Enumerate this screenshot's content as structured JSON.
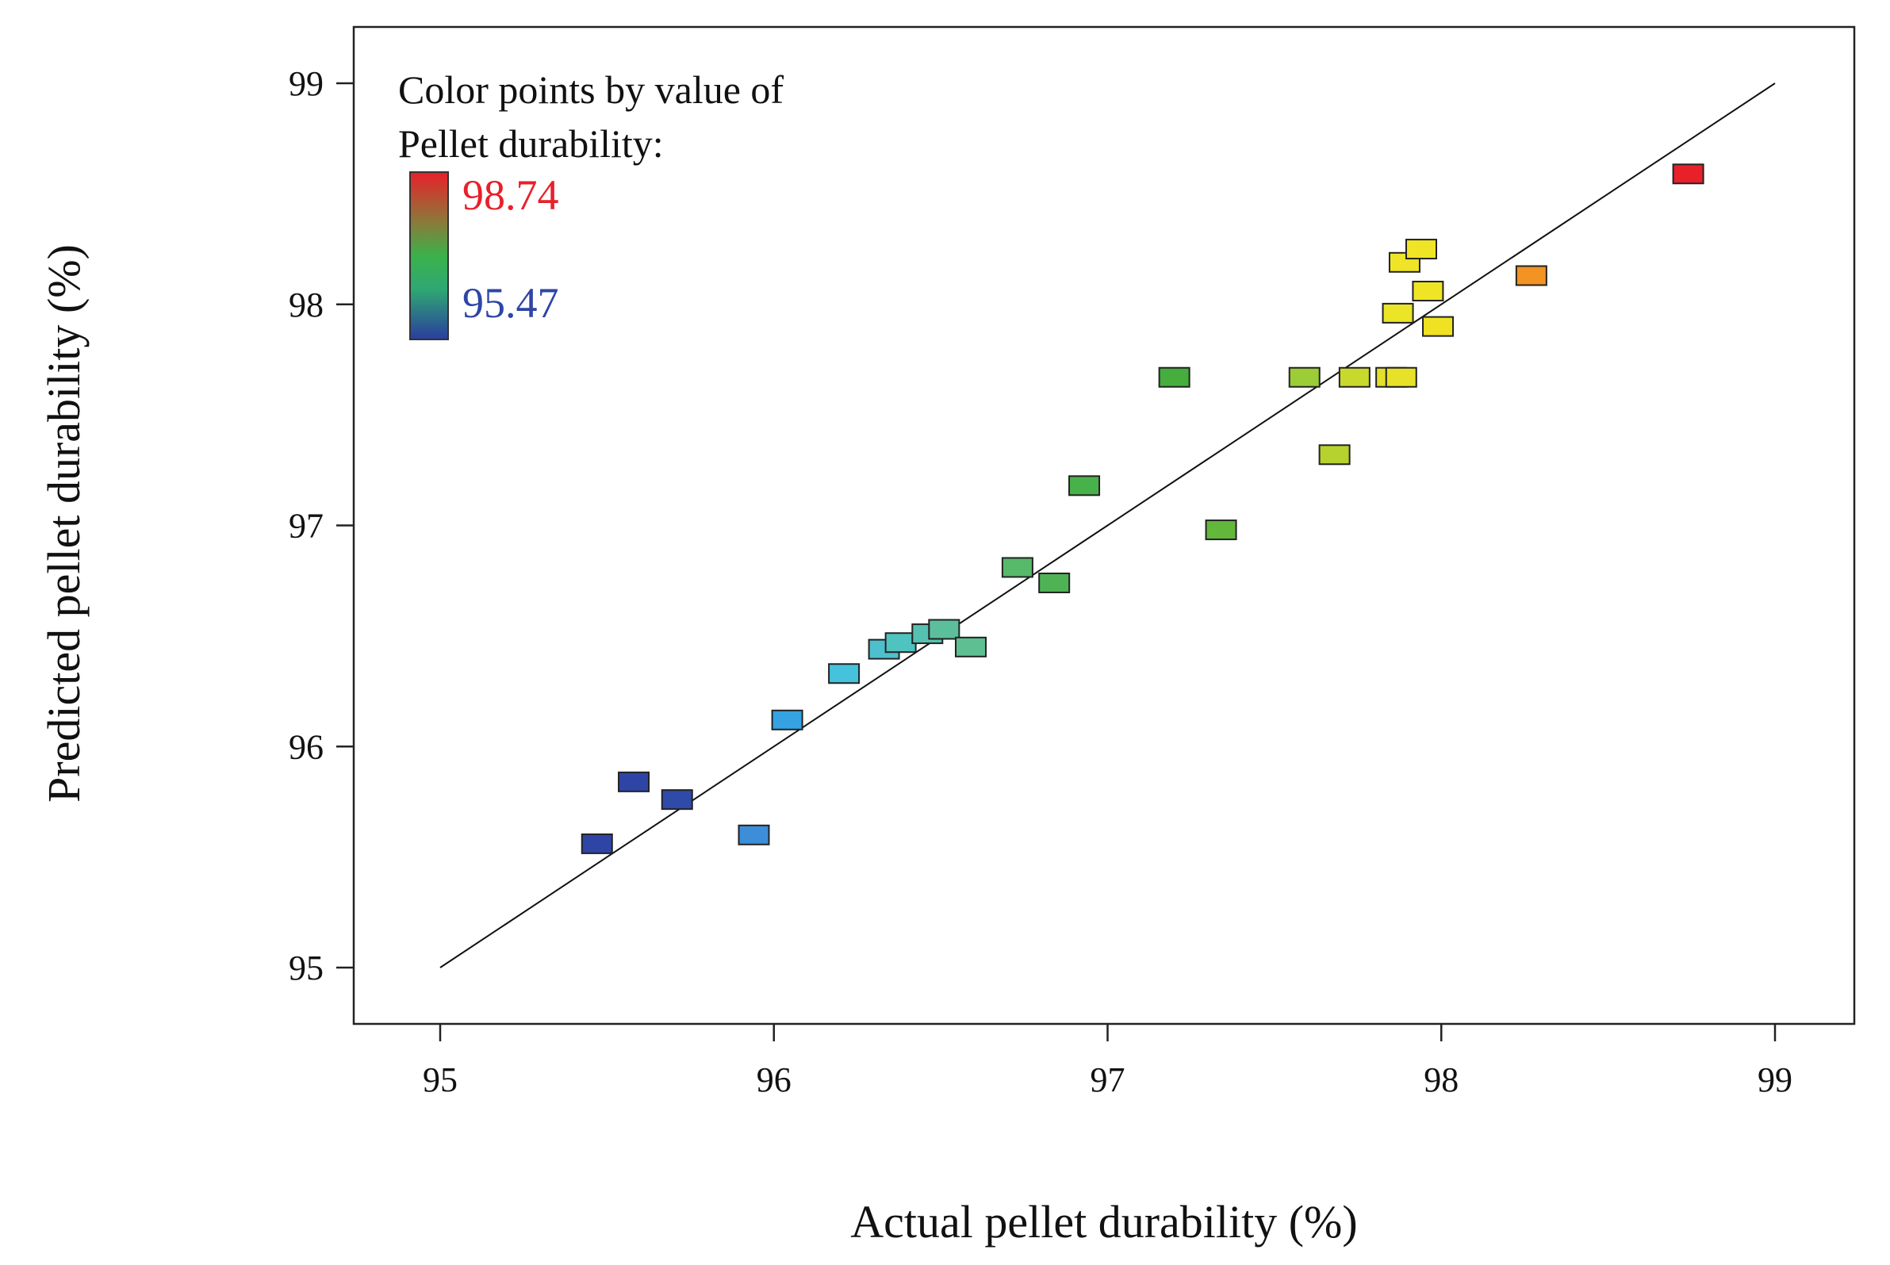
{
  "chart_data": {
    "type": "scatter",
    "title": "",
    "xlabel": "Actual pellet durability (%)",
    "ylabel": "Predicted pellet durability (%)",
    "xlim": [
      94.75,
      99.25
    ],
    "ylim": [
      94.75,
      99.25
    ],
    "xticks": [
      "95",
      "96",
      "97",
      "98",
      "99"
    ],
    "yticks": [
      "95",
      "96",
      "97",
      "98",
      "99"
    ],
    "reference_line": {
      "from": [
        95,
        95
      ],
      "to": [
        99,
        99
      ]
    },
    "legend": {
      "title_line1": "Color points by value of",
      "title_line2": "Pellet durability:",
      "max_label": "98.74",
      "min_label": "95.47",
      "max_value": 98.74,
      "min_value": 95.47,
      "placement": "top-left"
    },
    "points": [
      {
        "x": 95.47,
        "y": 95.56,
        "color": "#2f45a6"
      },
      {
        "x": 95.58,
        "y": 95.84,
        "color": "#2f45a6"
      },
      {
        "x": 95.71,
        "y": 95.76,
        "color": "#2f4aa9"
      },
      {
        "x": 95.94,
        "y": 95.6,
        "color": "#3d8ed8"
      },
      {
        "x": 96.04,
        "y": 96.12,
        "color": "#35a3e2"
      },
      {
        "x": 96.21,
        "y": 96.33,
        "color": "#45c3dc"
      },
      {
        "x": 96.33,
        "y": 96.44,
        "color": "#4ebfcc"
      },
      {
        "x": 96.38,
        "y": 96.47,
        "color": "#4fc3c0"
      },
      {
        "x": 96.46,
        "y": 96.51,
        "color": "#55c1b0"
      },
      {
        "x": 96.51,
        "y": 96.53,
        "color": "#5bbf9c"
      },
      {
        "x": 96.59,
        "y": 96.45,
        "color": "#5dbf92"
      },
      {
        "x": 96.73,
        "y": 96.81,
        "color": "#57b96a"
      },
      {
        "x": 96.84,
        "y": 96.74,
        "color": "#4fb356"
      },
      {
        "x": 96.93,
        "y": 97.18,
        "color": "#48b24a"
      },
      {
        "x": 97.2,
        "y": 97.67,
        "color": "#45ae3d"
      },
      {
        "x": 97.34,
        "y": 96.98,
        "color": "#62b83a"
      },
      {
        "x": 97.59,
        "y": 97.67,
        "color": "#9ccc36"
      },
      {
        "x": 97.68,
        "y": 97.32,
        "color": "#b6d22e"
      },
      {
        "x": 97.74,
        "y": 97.67,
        "color": "#c9d82c"
      },
      {
        "x": 97.85,
        "y": 97.67,
        "color": "#e2e028"
      },
      {
        "x": 97.88,
        "y": 97.67,
        "color": "#e7e227"
      },
      {
        "x": 97.87,
        "y": 97.96,
        "color": "#ece427"
      },
      {
        "x": 97.89,
        "y": 98.19,
        "color": "#efe526"
      },
      {
        "x": 97.94,
        "y": 98.25,
        "color": "#f0e524"
      },
      {
        "x": 97.96,
        "y": 98.06,
        "color": "#f0e524"
      },
      {
        "x": 97.99,
        "y": 97.9,
        "color": "#f0e222"
      },
      {
        "x": 98.27,
        "y": 98.13,
        "color": "#f29324"
      },
      {
        "x": 98.74,
        "y": 98.59,
        "color": "#e8202a"
      }
    ]
  }
}
